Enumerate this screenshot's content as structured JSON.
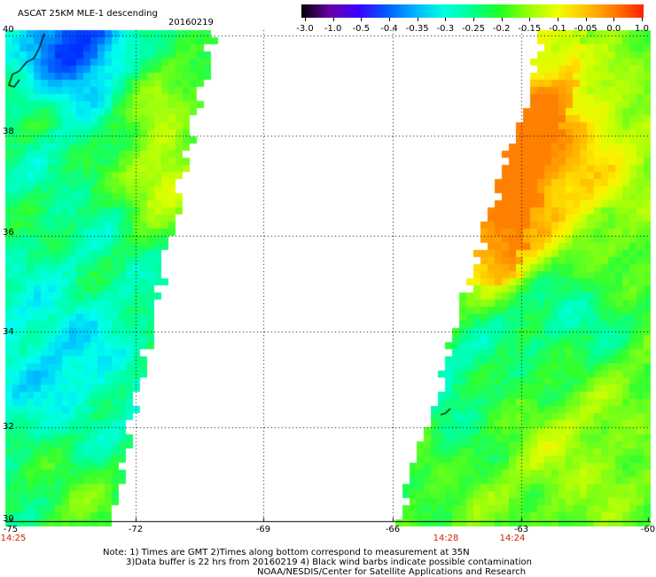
{
  "header": {
    "title": "ASCAT 25KM MLE-1 descending",
    "date": "20160219"
  },
  "colorbar": {
    "labels": [
      "-3.0",
      "-1.0",
      "-0.5",
      "-0.4",
      "-0.35",
      "-0.3",
      "-0.25",
      "-0.2",
      "-0.15",
      "-0.1",
      "-0.05",
      "0.0",
      "1.0"
    ],
    "colors": [
      "#000000",
      "#6a00a8",
      "#3a00ff",
      "#005cff",
      "#00b4ff",
      "#00ffe0",
      "#00ff90",
      "#20ff20",
      "#9aff00",
      "#f0ff00",
      "#ffc000",
      "#ff7a00",
      "#ff2000"
    ]
  },
  "axes": {
    "lon_labels": [
      "-75",
      "-72",
      "-69",
      "-66",
      "-63",
      "-60"
    ],
    "lat_labels": [
      "40",
      "38",
      "36",
      "34",
      "32",
      "30"
    ],
    "time_labels": [
      "14:25",
      "14:28",
      "14:24"
    ]
  },
  "notes": {
    "line1": "Note: 1) Times are GMT 2)Times along bottom correspond to measurement at 35N",
    "line2": "3)Data buffer is 22 hrs from 20160219 4) Black wind barbs indicate possible contamination",
    "line3": "NOAA/NESDIS/Center for Satellite Applications and Research"
  }
}
